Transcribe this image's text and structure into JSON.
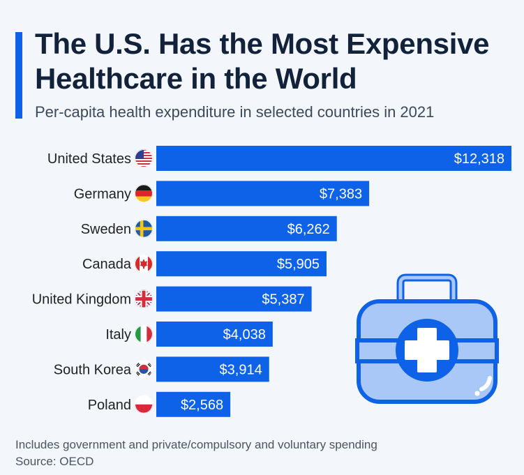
{
  "title_line1": "The U.S. Has the Most Expensive",
  "title_line2": "Healthcare in the World",
  "subtitle": "Per-capita health expenditure in selected countries in 2021",
  "footnote": "Includes government and private/compulsory and voluntary spending",
  "source": "Source: OECD",
  "colors": {
    "bar": "#0e62e8",
    "title": "#12223b",
    "illustration_light": "#a9c8f7",
    "illustration_dark": "#0e62e8"
  },
  "illustration": "first-aid-kit-icon",
  "chart_data": {
    "type": "bar",
    "orientation": "horizontal",
    "title": "The U.S. Has the Most Expensive Healthcare in the World",
    "subtitle": "Per-capita health expenditure in selected countries in 2021",
    "categories": [
      "United States",
      "Germany",
      "Sweden",
      "Canada",
      "United Kingdom",
      "Italy",
      "South Korea",
      "Poland"
    ],
    "values": [
      12318,
      7383,
      6262,
      5905,
      5387,
      4038,
      3914,
      2568
    ],
    "value_labels": [
      "$12,318",
      "$7,383",
      "$6,262",
      "$5,905",
      "$5,387",
      "$4,038",
      "$3,914",
      "$2,568"
    ],
    "flags": [
      "us-flag-icon",
      "germany-flag-icon",
      "sweden-flag-icon",
      "canada-flag-icon",
      "uk-flag-icon",
      "italy-flag-icon",
      "south-korea-flag-icon",
      "poland-flag-icon"
    ],
    "xlim": [
      0,
      12318
    ],
    "grid": false,
    "legend": "none"
  }
}
